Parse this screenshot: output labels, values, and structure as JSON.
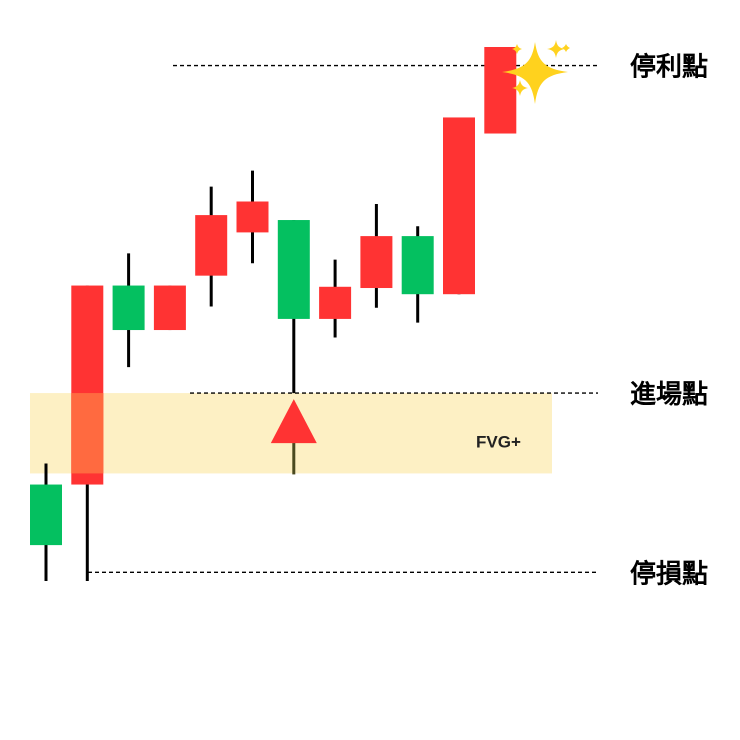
{
  "chart_data": {
    "type": "candlestick",
    "title": "",
    "xlabel": "",
    "ylabel": "",
    "grid": false,
    "legend": "none",
    "ylim": [
      0,
      100
    ],
    "colors": {
      "up": "#04c060",
      "down": "#ff3333",
      "wick": "#000000",
      "fvg_zone": "#fdf0c4",
      "overlap": "#ff6a40",
      "arrow": "#ff3333",
      "arrow_stem": "#4a4a20",
      "sparkle": "#ffd21e"
    },
    "candles": [
      {
        "index": 0,
        "open": 19.4,
        "close": 29.2,
        "high": 32.6,
        "low": 13.6,
        "color": "up"
      },
      {
        "index": 1,
        "open": 29.2,
        "close": 61.4,
        "high": 61.4,
        "low": 13.6,
        "color": "down"
      },
      {
        "index": 2,
        "open": 54.2,
        "close": 61.4,
        "high": 66.6,
        "low": 48.2,
        "color": "up"
      },
      {
        "index": 3,
        "open": 54.2,
        "close": 61.4,
        "high": 61.4,
        "low": 54.2,
        "color": "down"
      },
      {
        "index": 4,
        "open": 63.0,
        "close": 72.8,
        "high": 77.4,
        "low": 58.0,
        "color": "down"
      },
      {
        "index": 5,
        "open": 70.0,
        "close": 75.0,
        "high": 80.0,
        "low": 65.0,
        "color": "down"
      },
      {
        "index": 6,
        "open": 56.0,
        "close": 72.0,
        "high": 72.0,
        "low": 44.0,
        "color": "up"
      },
      {
        "index": 7,
        "open": 56.0,
        "close": 61.2,
        "high": 65.6,
        "low": 53.0,
        "color": "down"
      },
      {
        "index": 8,
        "open": 61.0,
        "close": 69.4,
        "high": 74.6,
        "low": 57.8,
        "color": "down"
      },
      {
        "index": 9,
        "open": 60.0,
        "close": 69.4,
        "high": 71.0,
        "low": 55.4,
        "color": "up"
      },
      {
        "index": 10,
        "open": 60.0,
        "close": 88.6,
        "high": 88.6,
        "low": 60.0,
        "color": "down"
      },
      {
        "index": 11,
        "open": 86.0,
        "close": 100.0,
        "high": 100.0,
        "low": 86.0,
        "color": "down"
      }
    ],
    "fvg_zone": {
      "low": 31.0,
      "high": 44.0,
      "label": "FVG+"
    },
    "levels": [
      {
        "name": "take_profit",
        "value": 97.0,
        "label": "停利點"
      },
      {
        "name": "entry",
        "value": 44.0,
        "label": "進場點"
      },
      {
        "name": "stop_loss",
        "value": 15.0,
        "label": "停損點"
      }
    ],
    "entry_marker": {
      "candle_index": 6,
      "value": 31.0
    }
  }
}
